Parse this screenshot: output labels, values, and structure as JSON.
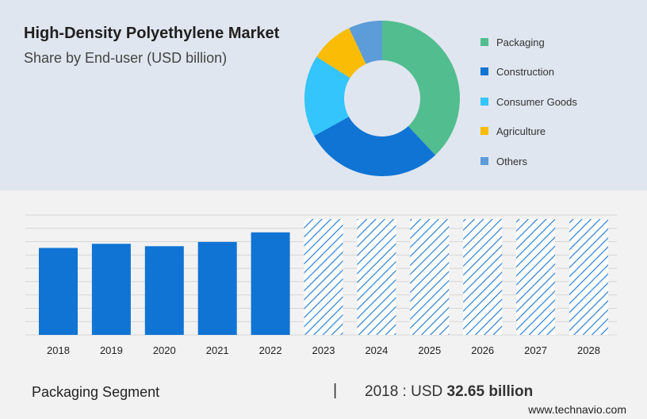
{
  "header": {
    "title": "High-Density Polyethylene Market",
    "subtitle": "Share by End-user (USD billion)"
  },
  "chart_data": [
    {
      "type": "pie",
      "variant": "donut",
      "slices": [
        {
          "label": "Packaging",
          "value": 38,
          "color": "#52bd8f"
        },
        {
          "label": "Construction",
          "value": 29,
          "color": "#0f74d4"
        },
        {
          "label": "Consumer Goods",
          "value": 17,
          "color": "#33c5fb"
        },
        {
          "label": "Agriculture",
          "value": 9,
          "color": "#fbbc05"
        },
        {
          "label": "Others",
          "value": 7,
          "color": "#5c9cd8"
        }
      ],
      "legend_position": "right"
    },
    {
      "type": "bar",
      "categories": [
        "2018",
        "2019",
        "2020",
        "2021",
        "2022",
        "2023",
        "2024",
        "2025",
        "2026",
        "2027",
        "2028"
      ],
      "values": [
        32.65,
        34.2,
        33.3,
        34.9,
        38.5,
        null,
        null,
        null,
        null,
        null,
        null
      ],
      "forecast_years": [
        "2023",
        "2024",
        "2025",
        "2026",
        "2027",
        "2028"
      ],
      "ylim": [
        0,
        45
      ],
      "grid": true,
      "bar_color": "#0f74d4",
      "forecast_pattern": "hatched"
    }
  ],
  "footer": {
    "segment_label": "Packaging Segment",
    "separator": "|",
    "year_prefix": "2018 : USD",
    "value": "32.65 billion",
    "site": "www.technavio.com"
  }
}
